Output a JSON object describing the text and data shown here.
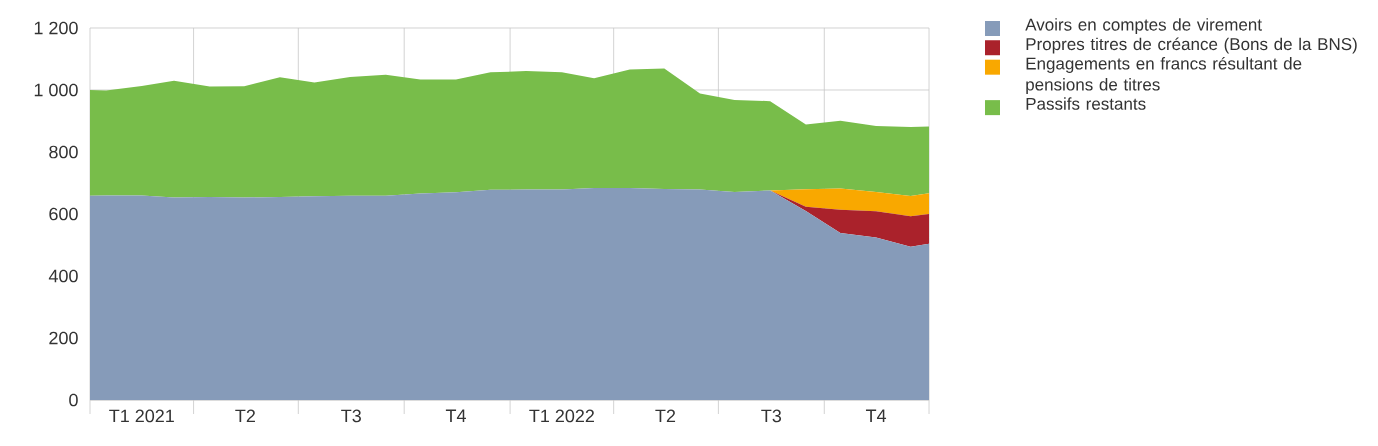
{
  "chart_data": {
    "type": "area",
    "stacked": true,
    "grid": true,
    "legend": "right",
    "x": [
      "2021-01-01",
      "2021-01-15",
      "2021-02-15",
      "2021-03-15",
      "2021-04-15",
      "2021-05-15",
      "2021-06-15",
      "2021-07-15",
      "2021-08-15",
      "2021-09-15",
      "2021-10-15",
      "2021-11-15",
      "2021-12-15",
      "2022-01-15",
      "2022-02-15",
      "2022-03-15",
      "2022-04-15",
      "2022-05-15",
      "2022-06-15",
      "2022-07-15",
      "2022-08-15",
      "2022-09-15",
      "2022-10-15",
      "2022-11-15",
      "2022-12-15",
      "2022-12-31"
    ],
    "xlim": [
      "2021-01-01",
      "2022-12-31"
    ],
    "xticks": [
      {
        "value": "2021-01-01",
        "label": null
      },
      {
        "value": "2021-02-15",
        "label": "T1 2021"
      },
      {
        "value": "2021-04-01",
        "label": null
      },
      {
        "value": "2021-05-16",
        "label": "T2"
      },
      {
        "value": "2021-07-01",
        "label": null
      },
      {
        "value": "2021-08-16",
        "label": "T3"
      },
      {
        "value": "2021-10-01",
        "label": null
      },
      {
        "value": "2021-11-15",
        "label": "T4"
      },
      {
        "value": "2022-01-01",
        "label": null
      },
      {
        "value": "2022-02-15",
        "label": "T1 2022"
      },
      {
        "value": "2022-04-01",
        "label": null
      },
      {
        "value": "2022-05-16",
        "label": "T2"
      },
      {
        "value": "2022-07-01",
        "label": null
      },
      {
        "value": "2022-08-16",
        "label": "T3"
      },
      {
        "value": "2022-10-01",
        "label": null
      },
      {
        "value": "2022-11-15",
        "label": "T4"
      },
      {
        "value": "2022-12-31",
        "label": null
      }
    ],
    "ylim": [
      0,
      1200
    ],
    "yticks": [
      0,
      200,
      400,
      600,
      800,
      {
        "value": 1000,
        "label": "1 000"
      },
      {
        "value": 1200,
        "label": "1 200"
      }
    ],
    "series": [
      {
        "name": "Avoirs en comptes de virement",
        "color": "#869bb9",
        "values": [
          659,
          660,
          660,
          653,
          655,
          653,
          655,
          657,
          659,
          659,
          666,
          670,
          678,
          679,
          679,
          684,
          684,
          681,
          679,
          671,
          676,
          610,
          539,
          524,
          494,
          504
        ]
      },
      {
        "name": "Propres titres de créance (Bons de la BNS)",
        "color": "#aa222b",
        "values": [
          0,
          0,
          0,
          0,
          0,
          0,
          0,
          0,
          0,
          0,
          0,
          0,
          0,
          0,
          0,
          0,
          0,
          0,
          0,
          0,
          0,
          13,
          75,
          85,
          99,
          96
        ]
      },
      {
        "name": "Engagements en francs résultant de pensions de titres",
        "color": "#f9a800",
        "values": [
          0,
          0,
          0,
          0,
          0,
          0,
          0,
          0,
          0,
          0,
          0,
          0,
          0,
          0,
          0,
          0,
          0,
          0,
          0,
          0,
          0,
          57,
          68,
          62,
          65,
          67
        ]
      },
      {
        "name": "Passifs restants",
        "color": "#78bd4a",
        "values": [
          341,
          338,
          353,
          377,
          356,
          359,
          386,
          367,
          383,
          390,
          368,
          364,
          379,
          382,
          378,
          354,
          382,
          388,
          310,
          297,
          288,
          209,
          219,
          213,
          223,
          215
        ]
      }
    ]
  }
}
